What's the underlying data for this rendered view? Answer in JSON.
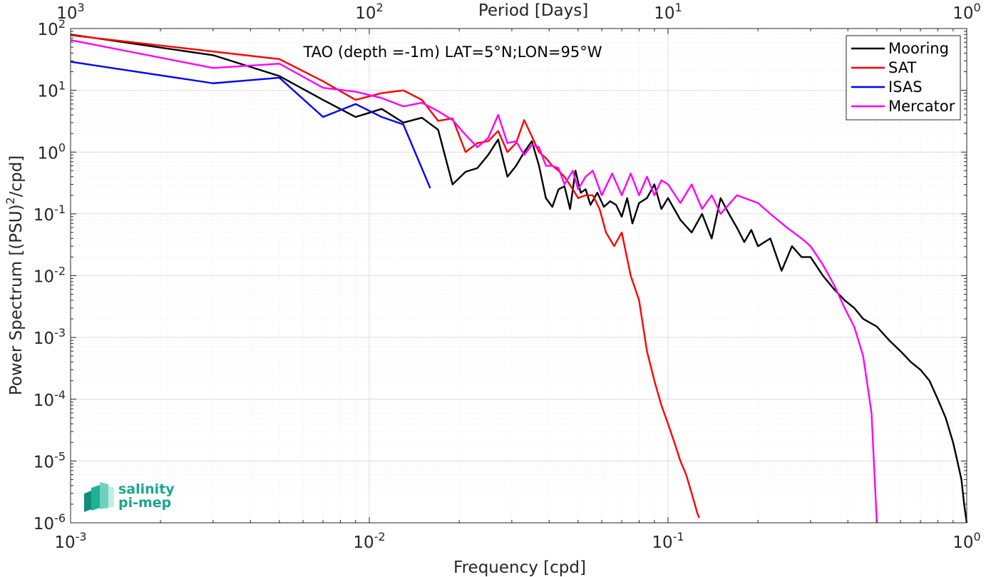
{
  "chart_data": {
    "type": "line",
    "title": "TAO (depth =-1m) LAT=5°N;LON=95°W",
    "xlabel": "Frequency [cpd]",
    "ylabel": "Power Spectrum [(PSU)²/cpd]",
    "ylabel_parts": {
      "main": "Power Spectrum [(PSU)",
      "sup": "2",
      "tail": "/cpd]"
    },
    "top_xlabel": "Period [Days]",
    "xscale": "log",
    "yscale": "log",
    "xlim": [
      0.001,
      1
    ],
    "ylim": [
      1e-06,
      100
    ],
    "grid": true,
    "legend_position": "top-right",
    "x_ticks": [
      {
        "value": 0.001,
        "base": "10",
        "exp": "-3"
      },
      {
        "value": 0.01,
        "base": "10",
        "exp": "-2"
      },
      {
        "value": 0.1,
        "base": "10",
        "exp": "-1"
      },
      {
        "value": 1,
        "base": "10",
        "exp": "0"
      }
    ],
    "top_ticks": [
      {
        "value": 0.001,
        "base": "10",
        "exp": "3"
      },
      {
        "value": 0.01,
        "base": "10",
        "exp": "2"
      },
      {
        "value": 0.1,
        "base": "10",
        "exp": "1"
      },
      {
        "value": 1,
        "base": "10",
        "exp": "0"
      }
    ],
    "y_ticks": [
      {
        "value": 100,
        "base": "10",
        "exp": "2"
      },
      {
        "value": 10,
        "base": "10",
        "exp": "1"
      },
      {
        "value": 1,
        "base": "10",
        "exp": "0"
      },
      {
        "value": 0.1,
        "base": "10",
        "exp": "-1"
      },
      {
        "value": 0.01,
        "base": "10",
        "exp": "-2"
      },
      {
        "value": 0.001,
        "base": "10",
        "exp": "-3"
      },
      {
        "value": 0.0001,
        "base": "10",
        "exp": "-4"
      },
      {
        "value": 1e-05,
        "base": "10",
        "exp": "-5"
      },
      {
        "value": 1e-06,
        "base": "10",
        "exp": "-6"
      }
    ],
    "series": [
      {
        "name": "Mooring",
        "color": "#000000",
        "points": [
          [
            0.001,
            80
          ],
          [
            0.003,
            37
          ],
          [
            0.005,
            17
          ],
          [
            0.007,
            7
          ],
          [
            0.009,
            3.7
          ],
          [
            0.011,
            5
          ],
          [
            0.013,
            3
          ],
          [
            0.015,
            3.6
          ],
          [
            0.017,
            2.3
          ],
          [
            0.019,
            0.3
          ],
          [
            0.021,
            0.48
          ],
          [
            0.023,
            0.55
          ],
          [
            0.025,
            0.9
          ],
          [
            0.027,
            1.6
          ],
          [
            0.029,
            0.4
          ],
          [
            0.031,
            0.6
          ],
          [
            0.033,
            1
          ],
          [
            0.035,
            1.5
          ],
          [
            0.037,
            0.6
          ],
          [
            0.039,
            0.18
          ],
          [
            0.041,
            0.13
          ],
          [
            0.043,
            0.25
          ],
          [
            0.045,
            0.28
          ],
          [
            0.047,
            0.12
          ],
          [
            0.049,
            0.5
          ],
          [
            0.051,
            0.22
          ],
          [
            0.053,
            0.25
          ],
          [
            0.055,
            0.14
          ],
          [
            0.058,
            0.22
          ],
          [
            0.061,
            0.13
          ],
          [
            0.064,
            0.16
          ],
          [
            0.067,
            0.14
          ],
          [
            0.07,
            0.09
          ],
          [
            0.073,
            0.18
          ],
          [
            0.076,
            0.07
          ],
          [
            0.08,
            0.15
          ],
          [
            0.085,
            0.18
          ],
          [
            0.09,
            0.3
          ],
          [
            0.095,
            0.12
          ],
          [
            0.1,
            0.18
          ],
          [
            0.11,
            0.08
          ],
          [
            0.12,
            0.05
          ],
          [
            0.13,
            0.1
          ],
          [
            0.14,
            0.04
          ],
          [
            0.15,
            0.18
          ],
          [
            0.16,
            0.1
          ],
          [
            0.17,
            0.06
          ],
          [
            0.18,
            0.035
          ],
          [
            0.19,
            0.055
          ],
          [
            0.2,
            0.03
          ],
          [
            0.22,
            0.04
          ],
          [
            0.24,
            0.012
          ],
          [
            0.26,
            0.03
          ],
          [
            0.28,
            0.02
          ],
          [
            0.3,
            0.02
          ],
          [
            0.33,
            0.01
          ],
          [
            0.36,
            0.006
          ],
          [
            0.39,
            0.004
          ],
          [
            0.42,
            0.003
          ],
          [
            0.45,
            0.002
          ],
          [
            0.5,
            0.0015
          ],
          [
            0.55,
            0.0009
          ],
          [
            0.6,
            0.0006
          ],
          [
            0.65,
            0.0004
          ],
          [
            0.7,
            0.0003
          ],
          [
            0.75,
            0.0002
          ],
          [
            0.8,
            0.0001
          ],
          [
            0.85,
            5e-05
          ],
          [
            0.9,
            2e-05
          ],
          [
            0.93,
            1e-05
          ],
          [
            0.96,
            5e-06
          ],
          [
            0.98,
            2e-06
          ],
          [
            1.0,
            1e-06
          ]
        ]
      },
      {
        "name": "SAT",
        "color": "#ff0000",
        "points": [
          [
            0.001,
            78
          ],
          [
            0.005,
            32
          ],
          [
            0.007,
            14
          ],
          [
            0.009,
            7
          ],
          [
            0.011,
            9
          ],
          [
            0.013,
            10
          ],
          [
            0.015,
            7
          ],
          [
            0.017,
            3.2
          ],
          [
            0.019,
            3.5
          ],
          [
            0.021,
            1
          ],
          [
            0.023,
            1.4
          ],
          [
            0.025,
            1.5
          ],
          [
            0.027,
            2.2
          ],
          [
            0.029,
            1
          ],
          [
            0.031,
            1.4
          ],
          [
            0.033,
            3.3
          ],
          [
            0.035,
            1.8
          ],
          [
            0.037,
            1
          ],
          [
            0.039,
            0.8
          ],
          [
            0.041,
            0.6
          ],
          [
            0.043,
            0.5
          ],
          [
            0.045,
            0.4
          ],
          [
            0.048,
            0.25
          ],
          [
            0.05,
            0.18
          ],
          [
            0.053,
            0.2
          ],
          [
            0.056,
            0.2
          ],
          [
            0.059,
            0.12
          ],
          [
            0.062,
            0.05
          ],
          [
            0.066,
            0.03
          ],
          [
            0.07,
            0.05
          ],
          [
            0.075,
            0.01
          ],
          [
            0.08,
            0.004
          ],
          [
            0.085,
            0.0006
          ],
          [
            0.09,
            0.0002
          ],
          [
            0.095,
            8e-05
          ],
          [
            0.1,
            4e-05
          ],
          [
            0.105,
            2e-05
          ],
          [
            0.11,
            1e-05
          ],
          [
            0.115,
            6e-06
          ],
          [
            0.12,
            3e-06
          ],
          [
            0.125,
            1.5e-06
          ],
          [
            0.127,
            1.2e-06
          ]
        ]
      },
      {
        "name": "ISAS",
        "color": "#0000ff",
        "points": [
          [
            0.001,
            29
          ],
          [
            0.003,
            13
          ],
          [
            0.005,
            16
          ],
          [
            0.007,
            3.7
          ],
          [
            0.009,
            6
          ],
          [
            0.011,
            3.7
          ],
          [
            0.013,
            2.8
          ],
          [
            0.016,
            0.26
          ]
        ]
      },
      {
        "name": "Mercator",
        "color": "#ff00ff",
        "points": [
          [
            0.001,
            65
          ],
          [
            0.003,
            23
          ],
          [
            0.005,
            27
          ],
          [
            0.007,
            11
          ],
          [
            0.009,
            9.5
          ],
          [
            0.011,
            7.5
          ],
          [
            0.013,
            5.5
          ],
          [
            0.015,
            6.3
          ],
          [
            0.017,
            4.6
          ],
          [
            0.019,
            3.3
          ],
          [
            0.021,
            1.9
          ],
          [
            0.023,
            1.2
          ],
          [
            0.025,
            1.7
          ],
          [
            0.027,
            4
          ],
          [
            0.029,
            1.4
          ],
          [
            0.031,
            1.5
          ],
          [
            0.033,
            0.9
          ],
          [
            0.035,
            1.3
          ],
          [
            0.037,
            1.2
          ],
          [
            0.039,
            0.6
          ],
          [
            0.041,
            0.6
          ],
          [
            0.043,
            0.55
          ],
          [
            0.045,
            0.3
          ],
          [
            0.048,
            0.5
          ],
          [
            0.05,
            0.25
          ],
          [
            0.053,
            0.4
          ],
          [
            0.056,
            0.5
          ],
          [
            0.06,
            0.2
          ],
          [
            0.065,
            0.45
          ],
          [
            0.07,
            0.2
          ],
          [
            0.075,
            0.45
          ],
          [
            0.08,
            0.2
          ],
          [
            0.085,
            0.4
          ],
          [
            0.09,
            0.2
          ],
          [
            0.095,
            0.35
          ],
          [
            0.1,
            0.3
          ],
          [
            0.11,
            0.15
          ],
          [
            0.12,
            0.3
          ],
          [
            0.13,
            0.12
          ],
          [
            0.14,
            0.2
          ],
          [
            0.15,
            0.1
          ],
          [
            0.17,
            0.2
          ],
          [
            0.2,
            0.15
          ],
          [
            0.22,
            0.1
          ],
          [
            0.25,
            0.06
          ],
          [
            0.28,
            0.04
          ],
          [
            0.3,
            0.03
          ],
          [
            0.33,
            0.015
          ],
          [
            0.36,
            0.007
          ],
          [
            0.39,
            0.003
          ],
          [
            0.42,
            0.0015
          ],
          [
            0.45,
            0.0005
          ],
          [
            0.48,
            6e-05
          ],
          [
            0.5,
            1e-06
          ]
        ]
      }
    ]
  },
  "logo": {
    "line1": "salinity",
    "line2": "pi-mep",
    "colors": [
      "#0f8f79",
      "#20b096",
      "#6fd1bc",
      "#bfeee3"
    ]
  }
}
